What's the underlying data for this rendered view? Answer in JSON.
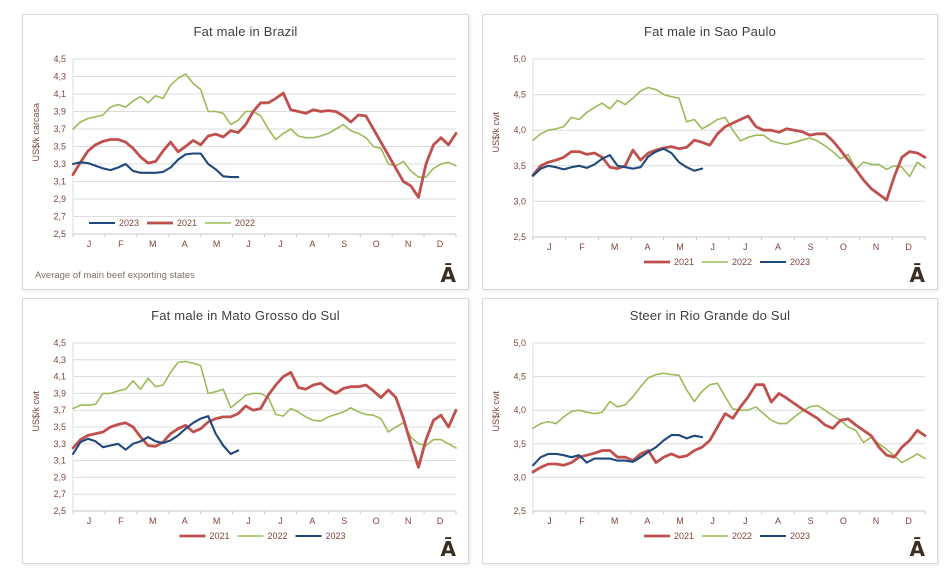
{
  "colors": {
    "series_2021": "#C0504D",
    "series_2022": "#9BBB59",
    "series_2023": "#1F497D",
    "grid": "#DCDCDC",
    "axis_line": "#C6C6C6",
    "axis_text": "#7E463C",
    "title_text": "#404040",
    "footer_text": "#837163",
    "logo_text": "#3A2D22",
    "panel_border": "#D7D7D7"
  },
  "logo_glyph": "Ā",
  "months": [
    "J",
    "F",
    "M",
    "A",
    "M",
    "J",
    "J",
    "A",
    "S",
    "O",
    "N",
    "D"
  ],
  "chart_data": [
    {
      "type": "line",
      "title": "Fat male in Brazil",
      "ylabel": "US$/k carcasa",
      "footer": "Average  of main beef exporting states",
      "ylim": [
        2.5,
        4.5
      ],
      "ystep": 0.2,
      "grid": true,
      "legend_position": "inside-bottom-left",
      "legend_order": [
        "2023",
        "2021",
        "2022"
      ],
      "x_weeks_total": 52,
      "series": [
        {
          "name": "2022",
          "color": "#9BBB59",
          "stroke_width": 1.6,
          "values": [
            3.7,
            3.78,
            3.82,
            3.84,
            3.86,
            3.95,
            3.98,
            3.95,
            4.02,
            4.07,
            4.0,
            4.08,
            4.05,
            4.2,
            4.28,
            4.33,
            4.22,
            4.15,
            3.9,
            3.9,
            3.88,
            3.75,
            3.8,
            3.9,
            3.9,
            3.85,
            3.7,
            3.58,
            3.65,
            3.7,
            3.62,
            3.6,
            3.6,
            3.62,
            3.65,
            3.7,
            3.75,
            3.68,
            3.65,
            3.6,
            3.5,
            3.48,
            3.3,
            3.28,
            3.33,
            3.22,
            3.15,
            3.15,
            3.25,
            3.3,
            3.32,
            3.28
          ]
        },
        {
          "name": "2021",
          "color": "#C0504D",
          "stroke_width": 2.8,
          "values": [
            3.18,
            3.32,
            3.45,
            3.52,
            3.56,
            3.58,
            3.58,
            3.55,
            3.48,
            3.38,
            3.31,
            3.33,
            3.45,
            3.55,
            3.44,
            3.5,
            3.57,
            3.52,
            3.62,
            3.64,
            3.61,
            3.68,
            3.66,
            3.75,
            3.9,
            4.0,
            4.0,
            4.05,
            4.11,
            3.92,
            3.9,
            3.88,
            3.92,
            3.9,
            3.91,
            3.9,
            3.85,
            3.78,
            3.86,
            3.85,
            3.7,
            3.55,
            3.4,
            3.25,
            3.1,
            3.05,
            2.92,
            3.3,
            3.52,
            3.6,
            3.52,
            3.65
          ]
        },
        {
          "name": "2023",
          "color": "#1F497D",
          "stroke_width": 2.1,
          "values": [
            3.3,
            3.32,
            3.31,
            3.28,
            3.25,
            3.23,
            3.26,
            3.3,
            3.22,
            3.2,
            3.2,
            3.2,
            3.21,
            3.26,
            3.35,
            3.41,
            3.42,
            3.42,
            3.3,
            3.24,
            3.16,
            3.15,
            3.15
          ]
        }
      ]
    },
    {
      "type": "line",
      "title": "Fat male in Sao Paulo",
      "ylabel": "US$/k cwt",
      "ylim": [
        2.5,
        5.0
      ],
      "ystep": 0.5,
      "grid": true,
      "legend_position": "below-center",
      "legend_order": [
        "2021",
        "2022",
        "2023"
      ],
      "x_weeks_total": 52,
      "series": [
        {
          "name": "2022",
          "color": "#9BBB59",
          "stroke_width": 1.6,
          "values": [
            3.86,
            3.95,
            4.0,
            4.02,
            4.05,
            4.18,
            4.15,
            4.25,
            4.32,
            4.38,
            4.3,
            4.42,
            4.36,
            4.45,
            4.55,
            4.6,
            4.57,
            4.5,
            4.47,
            4.45,
            4.12,
            4.15,
            4.02,
            4.08,
            4.15,
            4.18,
            4.0,
            3.85,
            3.9,
            3.93,
            3.93,
            3.85,
            3.82,
            3.8,
            3.83,
            3.86,
            3.89,
            3.85,
            3.78,
            3.7,
            3.6,
            3.66,
            3.45,
            3.55,
            3.52,
            3.52,
            3.45,
            3.5,
            3.48,
            3.35,
            3.55,
            3.47
          ]
        },
        {
          "name": "2021",
          "color": "#C0504D",
          "stroke_width": 2.8,
          "values": [
            3.37,
            3.5,
            3.55,
            3.58,
            3.62,
            3.7,
            3.7,
            3.66,
            3.68,
            3.62,
            3.48,
            3.46,
            3.5,
            3.72,
            3.58,
            3.68,
            3.72,
            3.75,
            3.77,
            3.74,
            3.76,
            3.86,
            3.83,
            3.79,
            3.95,
            4.05,
            4.1,
            4.15,
            4.2,
            4.05,
            4.0,
            4.0,
            3.97,
            4.02,
            4.0,
            3.98,
            3.93,
            3.95,
            3.95,
            3.85,
            3.72,
            3.58,
            3.45,
            3.3,
            3.18,
            3.1,
            3.02,
            3.35,
            3.62,
            3.7,
            3.68,
            3.62
          ]
        },
        {
          "name": "2023",
          "color": "#1F497D",
          "stroke_width": 2.1,
          "values": [
            3.36,
            3.46,
            3.5,
            3.48,
            3.45,
            3.48,
            3.5,
            3.47,
            3.52,
            3.6,
            3.65,
            3.5,
            3.48,
            3.46,
            3.48,
            3.63,
            3.7,
            3.74,
            3.68,
            3.55,
            3.48,
            3.43,
            3.46
          ]
        }
      ]
    },
    {
      "type": "line",
      "title": "Fat male in Mato Grosso do Sul",
      "ylabel": "US$/k cwt",
      "ylim": [
        2.5,
        4.5
      ],
      "ystep": 0.2,
      "grid": true,
      "legend_position": "below-center",
      "legend_order": [
        "2021",
        "2022",
        "2023"
      ],
      "x_weeks_total": 52,
      "series": [
        {
          "name": "2022",
          "color": "#9BBB59",
          "stroke_width": 1.6,
          "values": [
            3.72,
            3.76,
            3.76,
            3.77,
            3.9,
            3.9,
            3.93,
            3.95,
            4.05,
            3.95,
            4.08,
            3.98,
            4.0,
            4.15,
            4.27,
            4.28,
            4.26,
            4.23,
            3.9,
            3.92,
            3.95,
            3.73,
            3.8,
            3.88,
            3.9,
            3.9,
            3.85,
            3.65,
            3.63,
            3.72,
            3.68,
            3.62,
            3.58,
            3.57,
            3.62,
            3.65,
            3.68,
            3.73,
            3.68,
            3.65,
            3.64,
            3.6,
            3.44,
            3.5,
            3.55,
            3.38,
            3.3,
            3.28,
            3.35,
            3.35,
            3.3,
            3.25
          ]
        },
        {
          "name": "2021",
          "color": "#C0504D",
          "stroke_width": 2.8,
          "values": [
            3.25,
            3.35,
            3.4,
            3.42,
            3.44,
            3.5,
            3.53,
            3.55,
            3.5,
            3.38,
            3.28,
            3.27,
            3.32,
            3.42,
            3.48,
            3.52,
            3.44,
            3.48,
            3.56,
            3.6,
            3.62,
            3.62,
            3.66,
            3.75,
            3.7,
            3.72,
            3.88,
            4.0,
            4.1,
            4.15,
            3.97,
            3.95,
            4.0,
            4.02,
            3.95,
            3.9,
            3.96,
            3.98,
            3.98,
            4.0,
            3.93,
            3.85,
            3.94,
            3.85,
            3.6,
            3.3,
            3.02,
            3.35,
            3.58,
            3.64,
            3.5,
            3.7
          ]
        },
        {
          "name": "2023",
          "color": "#1F497D",
          "stroke_width": 2.1,
          "values": [
            3.18,
            3.32,
            3.36,
            3.33,
            3.26,
            3.28,
            3.3,
            3.23,
            3.3,
            3.33,
            3.38,
            3.33,
            3.31,
            3.34,
            3.4,
            3.48,
            3.55,
            3.6,
            3.63,
            3.42,
            3.28,
            3.18,
            3.22
          ]
        }
      ]
    },
    {
      "type": "line",
      "title": "Steer  in Rio Grande do Sul",
      "ylabel": "US$/k cwt",
      "ylim": [
        2.5,
        5.0
      ],
      "ystep": 0.5,
      "grid": true,
      "legend_position": "below-center",
      "legend_order": [
        "2021",
        "2022",
        "2023"
      ],
      "x_weeks_total": 52,
      "series": [
        {
          "name": "2022",
          "color": "#9BBB59",
          "stroke_width": 1.6,
          "values": [
            3.73,
            3.8,
            3.83,
            3.8,
            3.9,
            3.98,
            4.0,
            3.97,
            3.95,
            3.97,
            4.13,
            4.05,
            4.08,
            4.2,
            4.35,
            4.48,
            4.53,
            4.55,
            4.53,
            4.52,
            4.3,
            4.13,
            4.28,
            4.38,
            4.4,
            4.2,
            4.02,
            4.0,
            4.0,
            4.05,
            3.95,
            3.85,
            3.8,
            3.8,
            3.9,
            3.98,
            4.05,
            4.07,
            4.0,
            3.92,
            3.85,
            3.75,
            3.7,
            3.52,
            3.6,
            3.5,
            3.42,
            3.32,
            3.22,
            3.28,
            3.35,
            3.28
          ]
        },
        {
          "name": "2021",
          "color": "#C0504D",
          "stroke_width": 2.8,
          "values": [
            3.08,
            3.15,
            3.2,
            3.2,
            3.18,
            3.22,
            3.3,
            3.33,
            3.36,
            3.4,
            3.4,
            3.3,
            3.3,
            3.25,
            3.35,
            3.4,
            3.22,
            3.3,
            3.35,
            3.3,
            3.32,
            3.4,
            3.45,
            3.55,
            3.75,
            3.95,
            3.88,
            4.05,
            4.2,
            4.38,
            4.38,
            4.12,
            4.25,
            4.18,
            4.1,
            4.02,
            3.95,
            3.88,
            3.78,
            3.73,
            3.85,
            3.87,
            3.78,
            3.7,
            3.62,
            3.45,
            3.33,
            3.3,
            3.45,
            3.55,
            3.7,
            3.62
          ]
        },
        {
          "name": "2023",
          "color": "#1F497D",
          "stroke_width": 2.1,
          "values": [
            3.18,
            3.3,
            3.35,
            3.35,
            3.33,
            3.3,
            3.33,
            3.22,
            3.28,
            3.28,
            3.28,
            3.25,
            3.25,
            3.23,
            3.3,
            3.38,
            3.45,
            3.55,
            3.63,
            3.63,
            3.58,
            3.62,
            3.6
          ]
        }
      ]
    }
  ]
}
